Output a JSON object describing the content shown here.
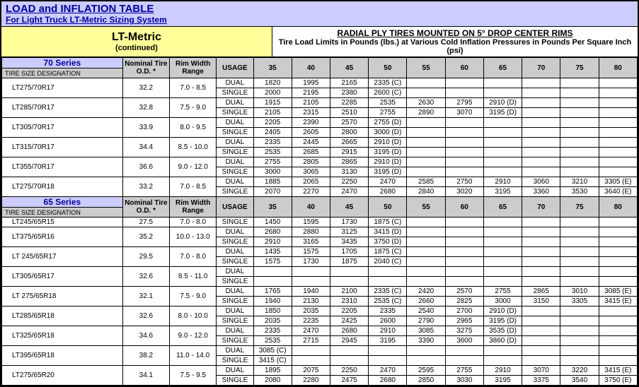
{
  "header": {
    "title1": "LOAD and INFLATION TABLE",
    "title2": "For Light Truck LT-Metric Sizing System"
  },
  "metric": {
    "name": "LT-Metric",
    "sub": "(continued)"
  },
  "radial": {
    "line1": "RADIAL PLY TIRES MOUNTED ON 5° DROP CENTER RIMS",
    "line2": "Tire Load Limits in Pounds (lbs.) at Various Cold Inflation Pressures in Pounds Per Square Inch (psi)"
  },
  "colhead": {
    "od": "Nominal Tire O.D. *",
    "rim": "Rim Width Range",
    "usage": "USAGE"
  },
  "psi": [
    "35",
    "40",
    "45",
    "50",
    "55",
    "60",
    "65",
    "70",
    "75",
    "80"
  ],
  "designation": "TIRE SIZE DESIGNATION",
  "series": [
    {
      "name": "70 Series",
      "rows": [
        {
          "size": "LT275/70R17",
          "od": "32.2",
          "rim": "7.0 - 8.5",
          "dual": [
            "1820",
            "1995",
            "2165",
            "2335 (C)",
            "",
            "",
            "",
            "",
            "",
            ""
          ],
          "single": [
            "2000",
            "2195",
            "2380",
            "2600 (C)",
            "",
            "",
            "",
            "",
            "",
            ""
          ]
        },
        {
          "size": "LT285/70R17",
          "od": "32.8",
          "rim": "7.5 - 9.0",
          "dual": [
            "1915",
            "2105",
            "2285",
            "2535",
            "2630",
            "2795",
            "2910 (D)",
            "",
            "",
            ""
          ],
          "single": [
            "2105",
            "2315",
            "2510",
            "2755",
            "2890",
            "3070",
            "3195 (D)",
            "",
            "",
            ""
          ]
        },
        {
          "size": "LT305/70R17",
          "od": "33.9",
          "rim": "8.0 - 9.5",
          "dual": [
            "2205",
            "2390",
            "2570",
            "2755 (D)",
            "",
            "",
            "",
            "",
            "",
            ""
          ],
          "single": [
            "2405",
            "2605",
            "2800",
            "3000 (D)",
            "",
            "",
            "",
            "",
            "",
            ""
          ]
        },
        {
          "size": "LT315/70R17",
          "od": "34.4",
          "rim": "8.5 - 10.0",
          "dual": [
            "2335",
            "2445",
            "2665",
            "2910 (D)",
            "",
            "",
            "",
            "",
            "",
            ""
          ],
          "single": [
            "2535",
            "2685",
            "2915",
            "3195 (D)",
            "",
            "",
            "",
            "",
            "",
            ""
          ]
        },
        {
          "size": "LT355/70R17",
          "od": "36.6",
          "rim": "9.0 - 12.0",
          "dual": [
            "2755",
            "2805",
            "2865",
            "2910 (D)",
            "",
            "",
            "",
            "",
            "",
            ""
          ],
          "single": [
            "3000",
            "3065",
            "3130",
            "3195 (D)",
            "",
            "",
            "",
            "",
            "",
            ""
          ]
        },
        {
          "size": "LT275/70R18",
          "od": "33.2",
          "rim": "7.0 - 8.5",
          "dual": [
            "1885",
            "2065",
            "2250",
            "2470",
            "2585",
            "2750",
            "2910",
            "3060",
            "3210",
            "3305 (E)"
          ],
          "single": [
            "2070",
            "2270",
            "2470",
            "2680",
            "2840",
            "3020",
            "3195",
            "3360",
            "3530",
            "3640 (E)"
          ]
        }
      ]
    },
    {
      "name": "65 Series",
      "rows": [
        {
          "size": "LT245/65R15",
          "od": "27.5",
          "rim": "7.0 - 8.0",
          "single": [
            "1450",
            "1595",
            "1730",
            "1875 (C)",
            "",
            "",
            "",
            "",
            "",
            ""
          ]
        },
        {
          "size": "LT375/65R16",
          "od": "35.2",
          "rim": "10.0 - 13.0",
          "dual": [
            "2680",
            "2880",
            "3125",
            "3415 (D)",
            "",
            "",
            "",
            "",
            "",
            ""
          ],
          "single": [
            "2910",
            "3165",
            "3435",
            "3750 (D)",
            "",
            "",
            "",
            "",
            "",
            ""
          ]
        },
        {
          "size": "LT 245/65R17",
          "od": "29.5",
          "rim": "7.0 - 8.0",
          "dual": [
            "1435",
            "1575",
            "1705",
            "1875 (C)",
            "",
            "",
            "",
            "",
            "",
            ""
          ],
          "single": [
            "1575",
            "1730",
            "1875",
            "2040 (C)",
            "",
            "",
            "",
            "",
            "",
            ""
          ]
        },
        {
          "size": "LT305/65R17",
          "od": "32.6",
          "rim": "8.5 - 11.0",
          "dual": [
            "",
            "",
            "",
            "",
            "",
            "",
            "",
            "",
            "",
            ""
          ],
          "single": [
            "",
            "",
            "",
            "",
            "",
            "",
            "",
            "",
            "",
            ""
          ]
        },
        {
          "size": "LT 275/65R18",
          "od": "32.1",
          "rim": "7.5 - 9.0",
          "dual": [
            "1765",
            "1940",
            "2100",
            "2335 (C)",
            "2420",
            "2570",
            "2755",
            "2865",
            "3010",
            "3085 (E)"
          ],
          "single": [
            "1940",
            "2130",
            "2310",
            "2535 (C)",
            "2660",
            "2825",
            "3000",
            "3150",
            "3305",
            "3415 (E)"
          ]
        },
        {
          "size": "LT285/65R18",
          "od": "32.6",
          "rim": "8.0 - 10.0",
          "dual": [
            "1850",
            "2035",
            "2205",
            "2335",
            "2540",
            "2700",
            "2910 (D)",
            "",
            "",
            ""
          ],
          "single": [
            "2035",
            "2235",
            "2425",
            "2600",
            "2790",
            "2965",
            "3195 (D)",
            "",
            "",
            ""
          ]
        },
        {
          "size": "LT325/65R18",
          "od": "34.6",
          "rim": "9.0 - 12.0",
          "dual": [
            "2335",
            "2470",
            "2680",
            "2910",
            "3085",
            "3275",
            "3535 (D)",
            "",
            "",
            ""
          ],
          "single": [
            "2535",
            "2715",
            "2945",
            "3195",
            "3390",
            "3600",
            "3860 (D)",
            "",
            "",
            ""
          ]
        },
        {
          "size": "LT395/65R18",
          "od": "38.2",
          "rim": "11.0 - 14.0",
          "dual": [
            "3085 (C)",
            "",
            "",
            "",
            "",
            "",
            "",
            "",
            "",
            ""
          ],
          "single": [
            "3415 (C)",
            "",
            "",
            "",
            "",
            "",
            "",
            "",
            "",
            ""
          ]
        },
        {
          "size": "LT275/65R20",
          "od": "34.1",
          "rim": "7.5 - 9.5",
          "dual": [
            "1895",
            "2075",
            "2250",
            "2470",
            "2595",
            "2755",
            "2910",
            "3070",
            "3220",
            "3415 (E)"
          ],
          "single": [
            "2080",
            "2280",
            "2475",
            "2680",
            "2850",
            "3030",
            "3195",
            "3375",
            "3540",
            "3750 (E)"
          ]
        }
      ]
    }
  ]
}
